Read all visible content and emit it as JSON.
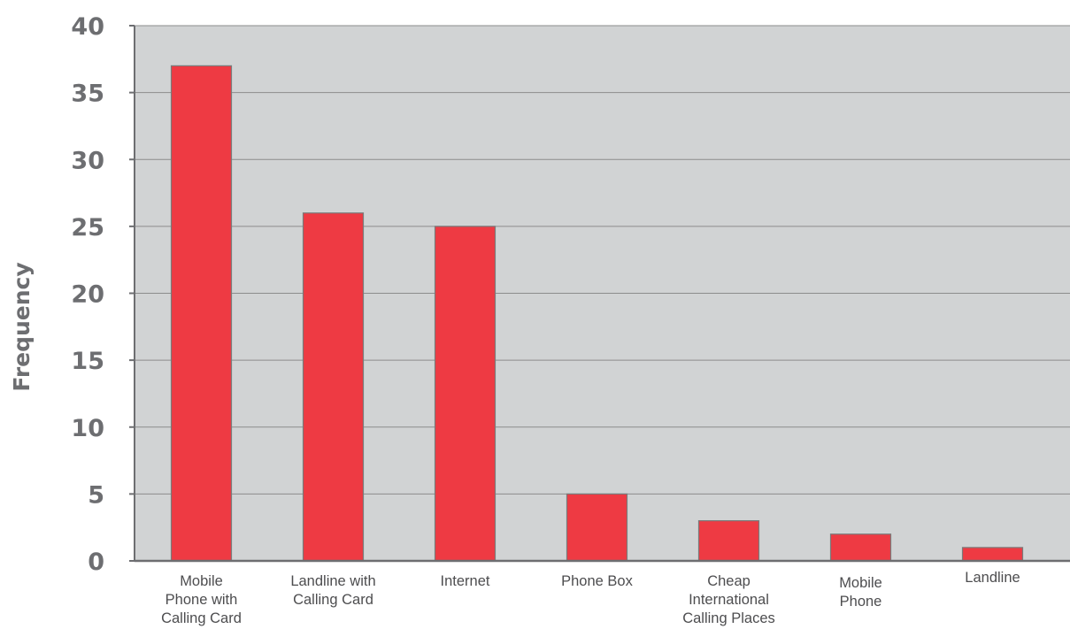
{
  "chart_data": {
    "type": "bar",
    "title": "",
    "xlabel": "",
    "ylabel": "Frequency",
    "ylim": [
      0,
      40
    ],
    "yticks": [
      0,
      5,
      10,
      15,
      20,
      25,
      30,
      35,
      40
    ],
    "ytick_labels": [
      "0",
      "5",
      "10",
      "15",
      "20",
      "25",
      "30",
      "35",
      "40"
    ],
    "grid": true,
    "categories": [
      "Mobile Phone with Calling Card",
      "Landline with Calling Card",
      "Internet",
      "Phone Box",
      "Cheap International Calling Places",
      "Mobile Phone",
      "Landline"
    ],
    "category_lines": [
      [
        "Mobile",
        "Phone with",
        "Calling Card"
      ],
      [
        "Landline with",
        "Calling Card"
      ],
      [
        "Internet"
      ],
      [
        "Phone Box"
      ],
      [
        "Cheap",
        "International",
        "Calling Places"
      ],
      [
        "Mobile",
        "Phone"
      ],
      [
        "Landline"
      ]
    ],
    "values": [
      37,
      26,
      25,
      5,
      3,
      2,
      1
    ],
    "colors": {
      "bar": "#ee3a43",
      "bar_edge": "#7a7a7a",
      "plot_bg": "#d1d3d4",
      "grid": "#8c8c8c",
      "axis": "#6d6e71"
    }
  }
}
